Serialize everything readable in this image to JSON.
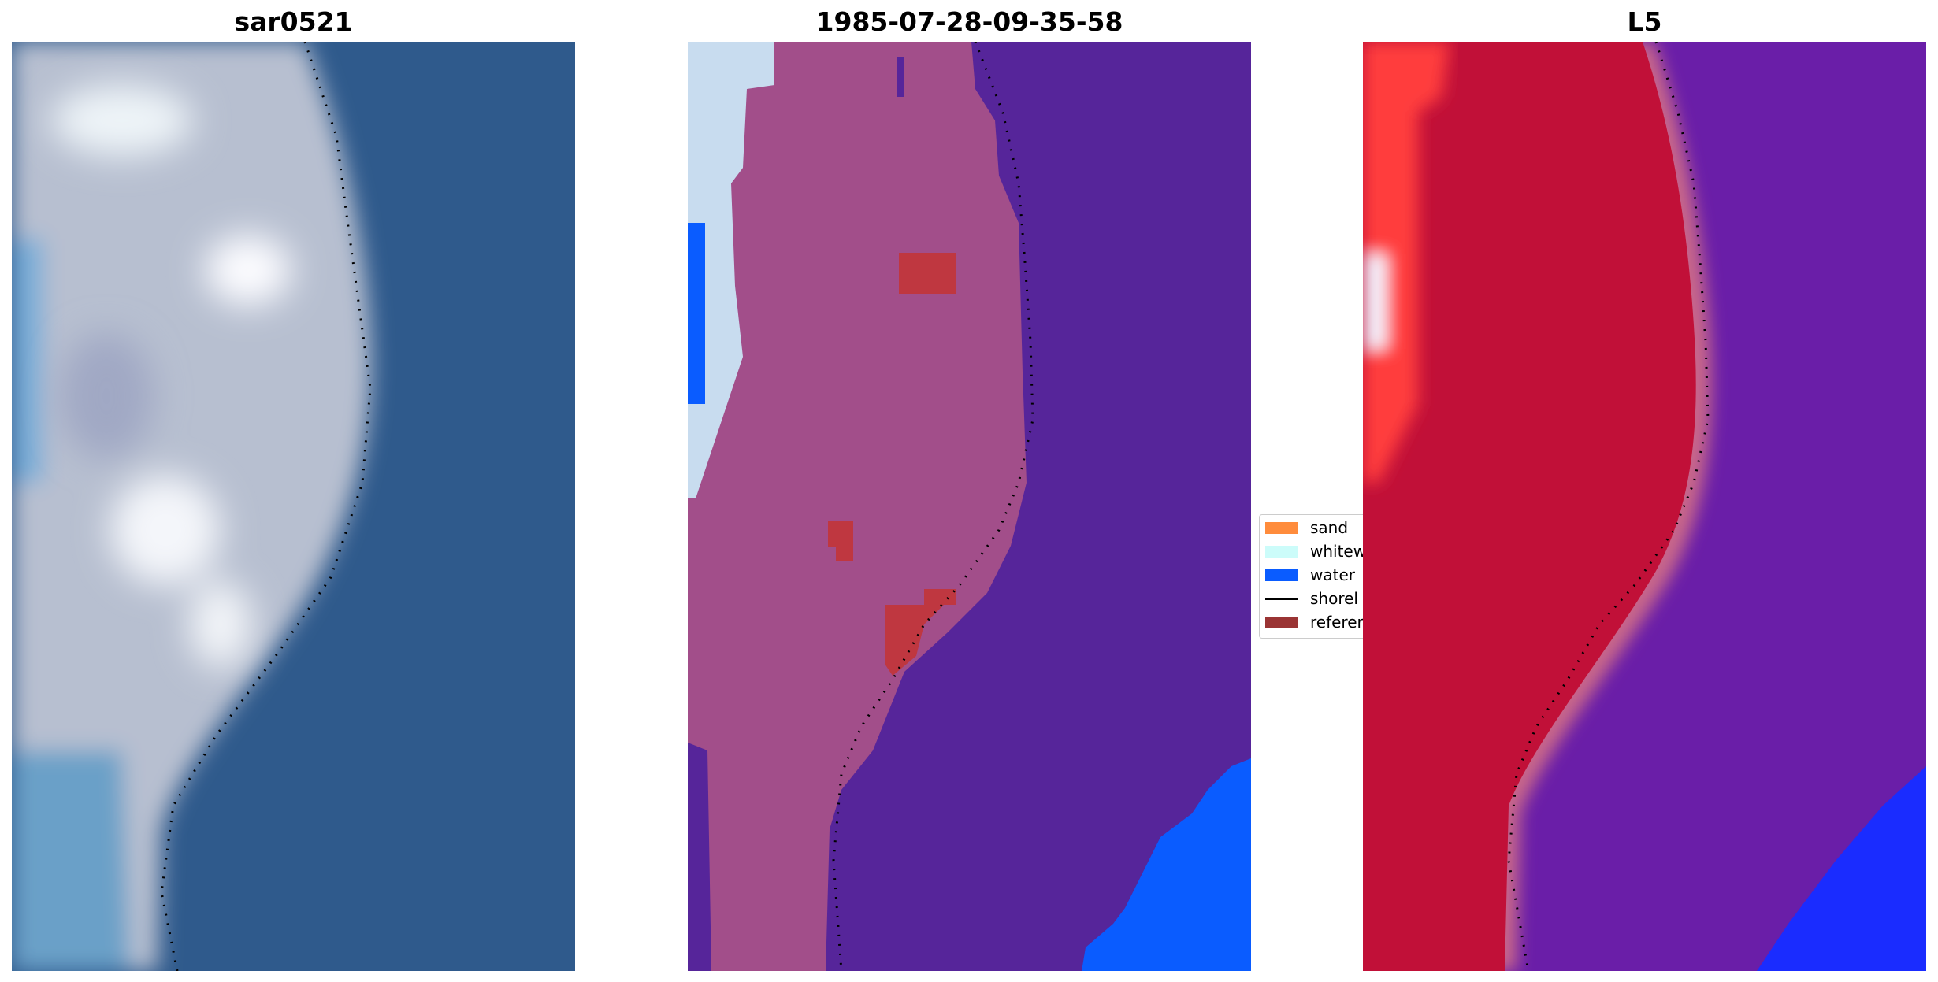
{
  "panels": [
    {
      "title": "sar0521"
    },
    {
      "title": "1985-07-28-09-35-58"
    },
    {
      "title": "L5"
    }
  ],
  "legend": {
    "items": [
      {
        "label": "sand",
        "color": "#ff8c3c",
        "kind": "patch"
      },
      {
        "label": "whitew",
        "color": "#ccfcfa",
        "kind": "patch"
      },
      {
        "label": "water",
        "color": "#0a5cff",
        "kind": "patch"
      },
      {
        "label": "shorel",
        "color": "#000000",
        "kind": "line"
      },
      {
        "label": "referer",
        "color": "#9a3434",
        "kind": "patch"
      }
    ]
  },
  "colors": {
    "rgb_water": "#2f5a8c",
    "rgb_land": "#b4bccc",
    "class_land_overlay": "#a24e8a",
    "class_sea": "#56259a",
    "class_water": "#0a5cff",
    "class_whitewater": "#c8dcef",
    "class_reference": "#bf3740",
    "index_land": "#c11038",
    "index_sea": "#6a1ea8",
    "index_water": "#1a2cff",
    "index_bright_left": "#ff3c3c"
  }
}
